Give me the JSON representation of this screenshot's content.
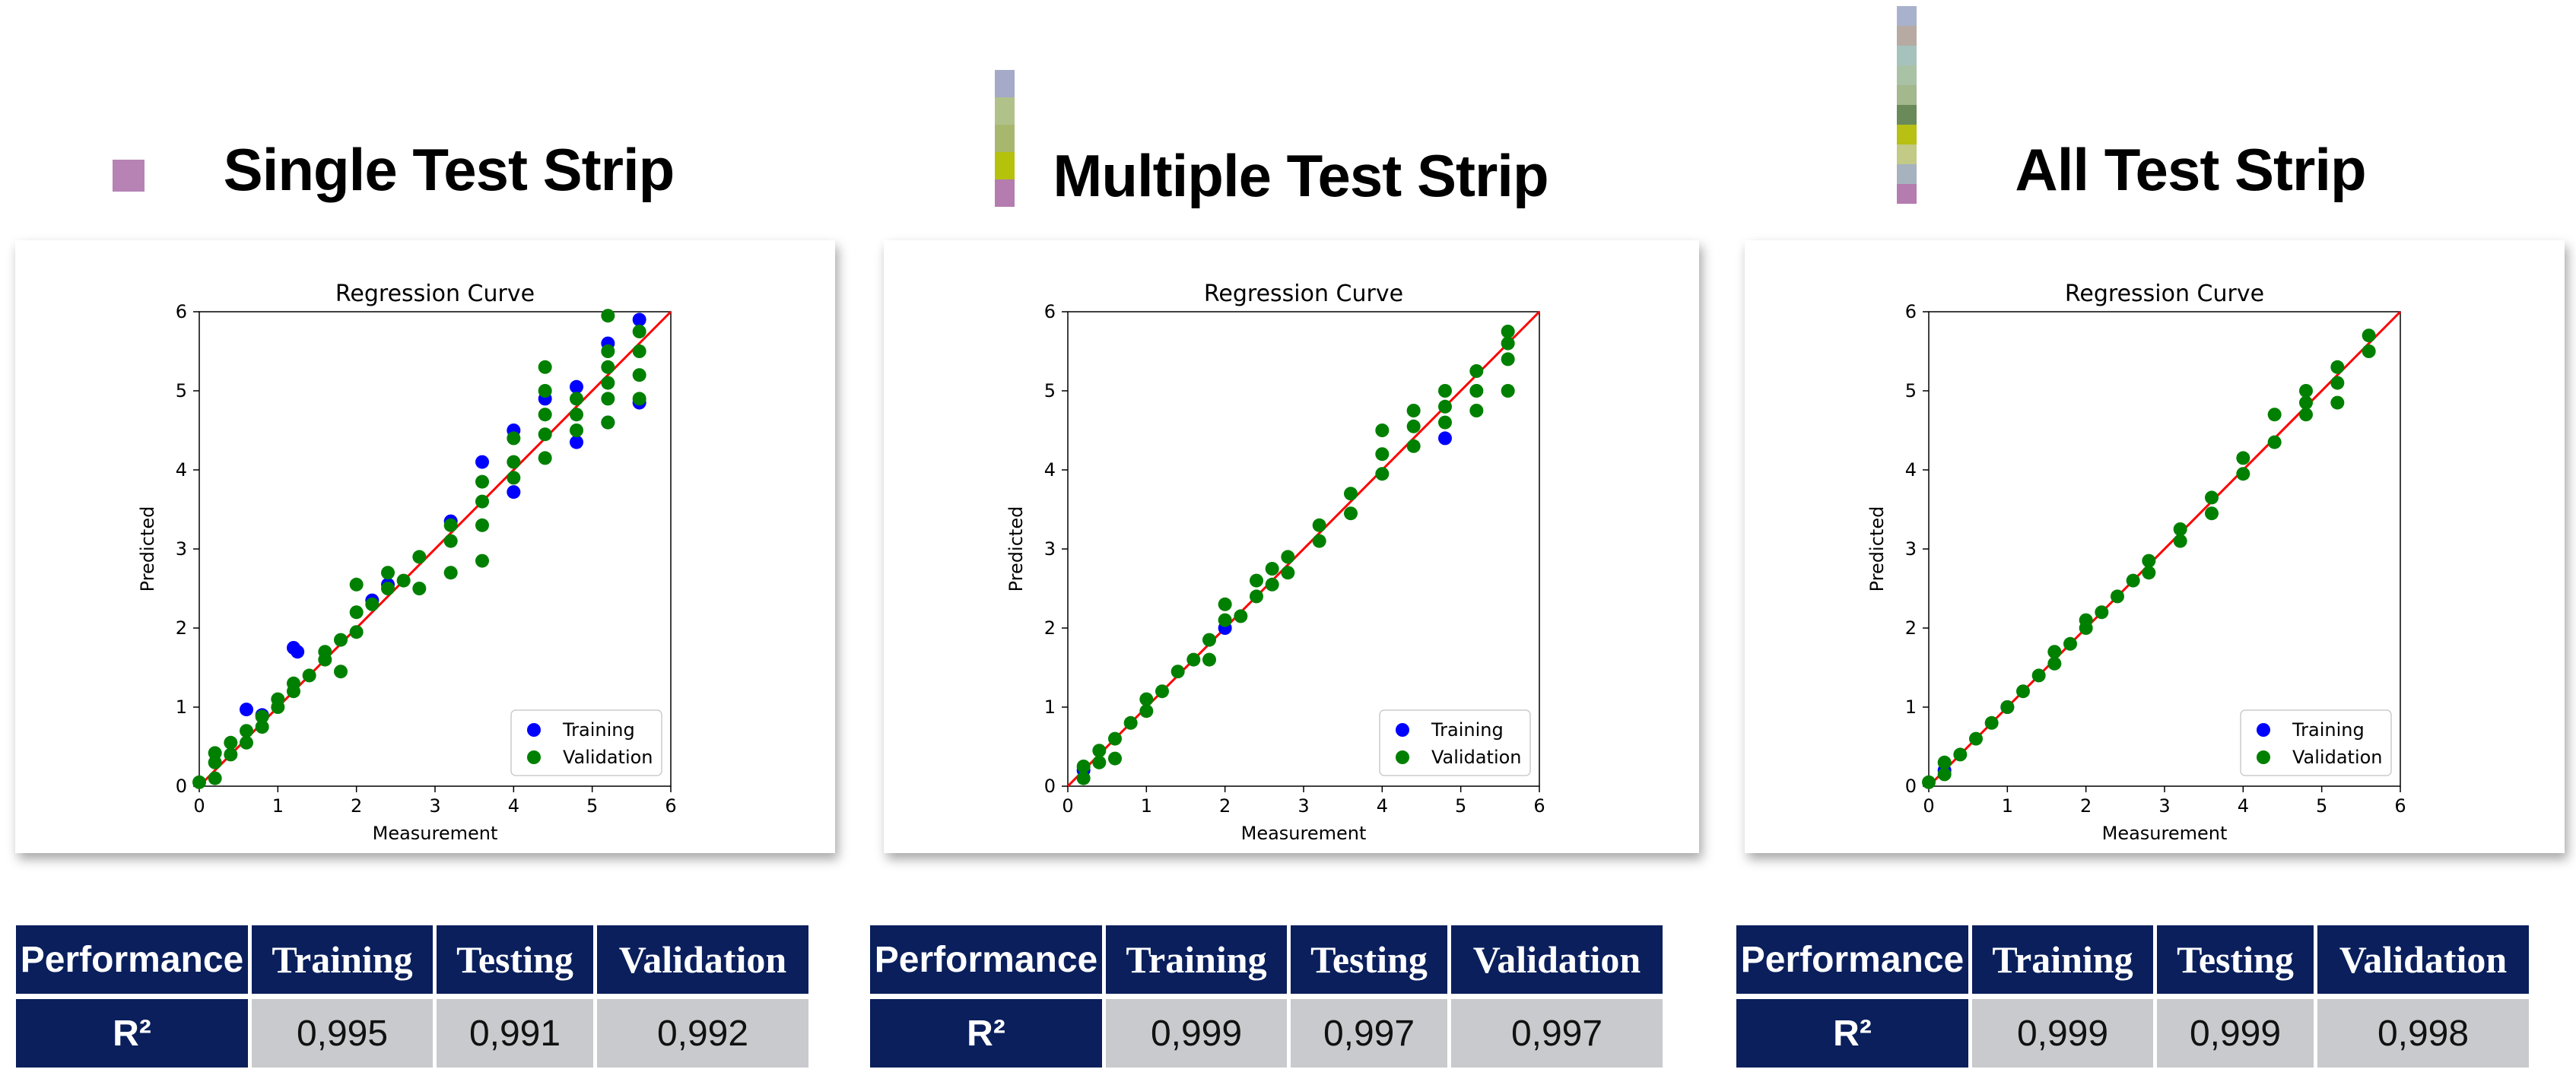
{
  "panels": [
    {
      "title": "Single Test Strip",
      "swatches": [
        "#b683b4"
      ],
      "table": {
        "header": [
          "Performance",
          "Training",
          "Testing",
          "Validation"
        ],
        "row_label": "R²",
        "values": [
          "0,995",
          "0,991",
          "0,992"
        ]
      }
    },
    {
      "title": "Multiple Test Strip",
      "swatches": [
        "#a4aac8",
        "#b0c28a",
        "#a7b86e",
        "#b5c20c",
        "#b57cb0"
      ],
      "table": {
        "header": [
          "Performance",
          "Training",
          "Testing",
          "Validation"
        ],
        "row_label": "R²",
        "values": [
          "0,999",
          "0,997",
          "0,997"
        ]
      }
    },
    {
      "title": "All Test Strip",
      "swatches": [
        "#a8b2cc",
        "#b6aaa2",
        "#a6c2bd",
        "#a9c2a5",
        "#a3b88c",
        "#6a8a5a",
        "#b7c013",
        "#c2ca86",
        "#a7b2bf",
        "#b57cb0"
      ],
      "table": {
        "header": [
          "Performance",
          "Training",
          "Testing",
          "Validation"
        ],
        "row_label": "R²",
        "values": [
          "0,999",
          "0,999",
          "0,998"
        ]
      }
    }
  ],
  "colors": {
    "header_bg": "#0a1f5c",
    "cell_bg": "#c9cacd",
    "training": "#0000ff",
    "validation": "#008000",
    "fit_line": "#ff0000"
  },
  "chart_data": [
    {
      "type": "scatter",
      "title": "Regression Curve",
      "xlabel": "Measurement",
      "ylabel": "Predicted",
      "xlim": [
        0,
        6
      ],
      "ylim": [
        0,
        6
      ],
      "xticks": [
        "0",
        "1",
        "2",
        "3",
        "4",
        "5",
        "6"
      ],
      "yticks": [
        "0",
        "1",
        "2",
        "3",
        "4",
        "5",
        "6"
      ],
      "legend": {
        "position": "lower-right",
        "entries": [
          "Training",
          "Validation"
        ]
      },
      "fit_line": [
        [
          0,
          0
        ],
        [
          6,
          6
        ]
      ],
      "series": [
        {
          "name": "Training",
          "points": [
            [
              0.6,
              0.97
            ],
            [
              1.2,
              1.75
            ],
            [
              1.25,
              1.7
            ],
            [
              2.2,
              2.35
            ],
            [
              3.2,
              3.35
            ],
            [
              3.6,
              4.1
            ],
            [
              4,
              4.5
            ],
            [
              4,
              3.72
            ],
            [
              4.4,
              4.9
            ],
            [
              4.8,
              5.05
            ],
            [
              4.8,
              4.35
            ],
            [
              5.2,
              5.6
            ],
            [
              5.2,
              4.6
            ],
            [
              5.6,
              5.9
            ],
            [
              5.6,
              4.85
            ],
            [
              0.8,
              0.9
            ],
            [
              2.4,
              2.55
            ]
          ]
        },
        {
          "name": "Validation",
          "points": [
            [
              0,
              0.05
            ],
            [
              0.2,
              0.1
            ],
            [
              0.2,
              0.3
            ],
            [
              0.2,
              0.42
            ],
            [
              0.4,
              0.4
            ],
            [
              0.4,
              0.55
            ],
            [
              0.6,
              0.55
            ],
            [
              0.6,
              0.7
            ],
            [
              0.8,
              0.75
            ],
            [
              0.8,
              0.88
            ],
            [
              1,
              1
            ],
            [
              1,
              1.1
            ],
            [
              1.2,
              1.2
            ],
            [
              1.2,
              1.3
            ],
            [
              1.4,
              1.4
            ],
            [
              1.6,
              1.6
            ],
            [
              1.6,
              1.7
            ],
            [
              1.8,
              1.45
            ],
            [
              1.8,
              1.85
            ],
            [
              2,
              1.95
            ],
            [
              2,
              2.2
            ],
            [
              2,
              2.55
            ],
            [
              2.2,
              2.3
            ],
            [
              2.4,
              2.5
            ],
            [
              2.4,
              2.7
            ],
            [
              2.6,
              2.6
            ],
            [
              2.8,
              2.5
            ],
            [
              2.8,
              2.9
            ],
            [
              3.2,
              2.7
            ],
            [
              3.2,
              3.1
            ],
            [
              3.2,
              3.3
            ],
            [
              3.6,
              2.85
            ],
            [
              3.6,
              3.3
            ],
            [
              3.6,
              3.6
            ],
            [
              3.6,
              3.85
            ],
            [
              4,
              3.9
            ],
            [
              4,
              4.1
            ],
            [
              4,
              4.4
            ],
            [
              4.4,
              4.15
            ],
            [
              4.4,
              4.45
            ],
            [
              4.4,
              4.7
            ],
            [
              4.4,
              5.0
            ],
            [
              4.4,
              5.3
            ],
            [
              4.8,
              4.5
            ],
            [
              4.8,
              4.7
            ],
            [
              4.8,
              4.9
            ],
            [
              5.2,
              4.6
            ],
            [
              5.2,
              4.9
            ],
            [
              5.2,
              5.1
            ],
            [
              5.2,
              5.3
            ],
            [
              5.2,
              5.5
            ],
            [
              5.2,
              5.95
            ],
            [
              5.6,
              4.9
            ],
            [
              5.6,
              5.2
            ],
            [
              5.6,
              5.5
            ],
            [
              5.6,
              5.75
            ]
          ]
        }
      ]
    },
    {
      "type": "scatter",
      "title": "Regression Curve",
      "xlabel": "Measurement",
      "ylabel": "Predicted",
      "xlim": [
        0,
        6
      ],
      "ylim": [
        0,
        6
      ],
      "xticks": [
        "0",
        "1",
        "2",
        "3",
        "4",
        "5",
        "6"
      ],
      "yticks": [
        "0",
        "1",
        "2",
        "3",
        "4",
        "5",
        "6"
      ],
      "legend": {
        "position": "lower-right",
        "entries": [
          "Training",
          "Validation"
        ]
      },
      "fit_line": [
        [
          0,
          0
        ],
        [
          6,
          6
        ]
      ],
      "series": [
        {
          "name": "Training",
          "points": [
            [
              4.8,
              4.4
            ],
            [
              0.2,
              0.2
            ],
            [
              2,
              2
            ]
          ]
        },
        {
          "name": "Validation",
          "points": [
            [
              0.2,
              0.1
            ],
            [
              0.2,
              0.25
            ],
            [
              0.4,
              0.3
            ],
            [
              0.4,
              0.45
            ],
            [
              0.6,
              0.35
            ],
            [
              0.6,
              0.6
            ],
            [
              0.8,
              0.8
            ],
            [
              1,
              0.95
            ],
            [
              1,
              1.1
            ],
            [
              1.2,
              1.2
            ],
            [
              1.4,
              1.45
            ],
            [
              1.6,
              1.6
            ],
            [
              1.8,
              1.6
            ],
            [
              1.8,
              1.85
            ],
            [
              2,
              2.1
            ],
            [
              2,
              2.3
            ],
            [
              2.2,
              2.15
            ],
            [
              2.4,
              2.4
            ],
            [
              2.4,
              2.6
            ],
            [
              2.6,
              2.55
            ],
            [
              2.6,
              2.75
            ],
            [
              2.8,
              2.7
            ],
            [
              2.8,
              2.9
            ],
            [
              3.2,
              3.1
            ],
            [
              3.2,
              3.3
            ],
            [
              3.6,
              3.45
            ],
            [
              3.6,
              3.7
            ],
            [
              4,
              3.95
            ],
            [
              4,
              4.2
            ],
            [
              4,
              4.5
            ],
            [
              4.4,
              4.3
            ],
            [
              4.4,
              4.55
            ],
            [
              4.4,
              4.75
            ],
            [
              4.8,
              4.6
            ],
            [
              4.8,
              4.8
            ],
            [
              4.8,
              5.0
            ],
            [
              5.2,
              4.75
            ],
            [
              5.2,
              5.0
            ],
            [
              5.2,
              5.25
            ],
            [
              5.6,
              5.0
            ],
            [
              5.6,
              5.4
            ],
            [
              5.6,
              5.6
            ],
            [
              5.6,
              5.75
            ]
          ]
        }
      ]
    },
    {
      "type": "scatter",
      "title": "Regression Curve",
      "xlabel": "Measurement",
      "ylabel": "Predicted",
      "xlim": [
        0,
        6
      ],
      "ylim": [
        0,
        6
      ],
      "xticks": [
        "0",
        "1",
        "2",
        "3",
        "4",
        "5",
        "6"
      ],
      "yticks": [
        "0",
        "1",
        "2",
        "3",
        "4",
        "5",
        "6"
      ],
      "legend": {
        "position": "lower-right",
        "entries": [
          "Training",
          "Validation"
        ]
      },
      "fit_line": [
        [
          0,
          0
        ],
        [
          6,
          6
        ]
      ],
      "series": [
        {
          "name": "Training",
          "points": [
            [
              0.2,
              0.2
            ],
            [
              1,
              1
            ]
          ]
        },
        {
          "name": "Validation",
          "points": [
            [
              0,
              0.05
            ],
            [
              0.2,
              0.15
            ],
            [
              0.2,
              0.3
            ],
            [
              0.4,
              0.4
            ],
            [
              0.6,
              0.6
            ],
            [
              0.8,
              0.8
            ],
            [
              1,
              1
            ],
            [
              1.2,
              1.2
            ],
            [
              1.4,
              1.4
            ],
            [
              1.6,
              1.55
            ],
            [
              1.6,
              1.7
            ],
            [
              1.8,
              1.8
            ],
            [
              2,
              2
            ],
            [
              2,
              2.1
            ],
            [
              2.2,
              2.2
            ],
            [
              2.4,
              2.4
            ],
            [
              2.6,
              2.6
            ],
            [
              2.8,
              2.7
            ],
            [
              2.8,
              2.85
            ],
            [
              3.2,
              3.1
            ],
            [
              3.2,
              3.25
            ],
            [
              3.6,
              3.45
            ],
            [
              3.6,
              3.65
            ],
            [
              4,
              3.95
            ],
            [
              4,
              4.15
            ],
            [
              4.4,
              4.35
            ],
            [
              4.4,
              4.7
            ],
            [
              4.8,
              4.7
            ],
            [
              4.8,
              4.85
            ],
            [
              4.8,
              5.0
            ],
            [
              5.2,
              4.85
            ],
            [
              5.2,
              5.1
            ],
            [
              5.2,
              5.3
            ],
            [
              5.6,
              5.5
            ],
            [
              5.6,
              5.7
            ]
          ]
        }
      ]
    }
  ]
}
